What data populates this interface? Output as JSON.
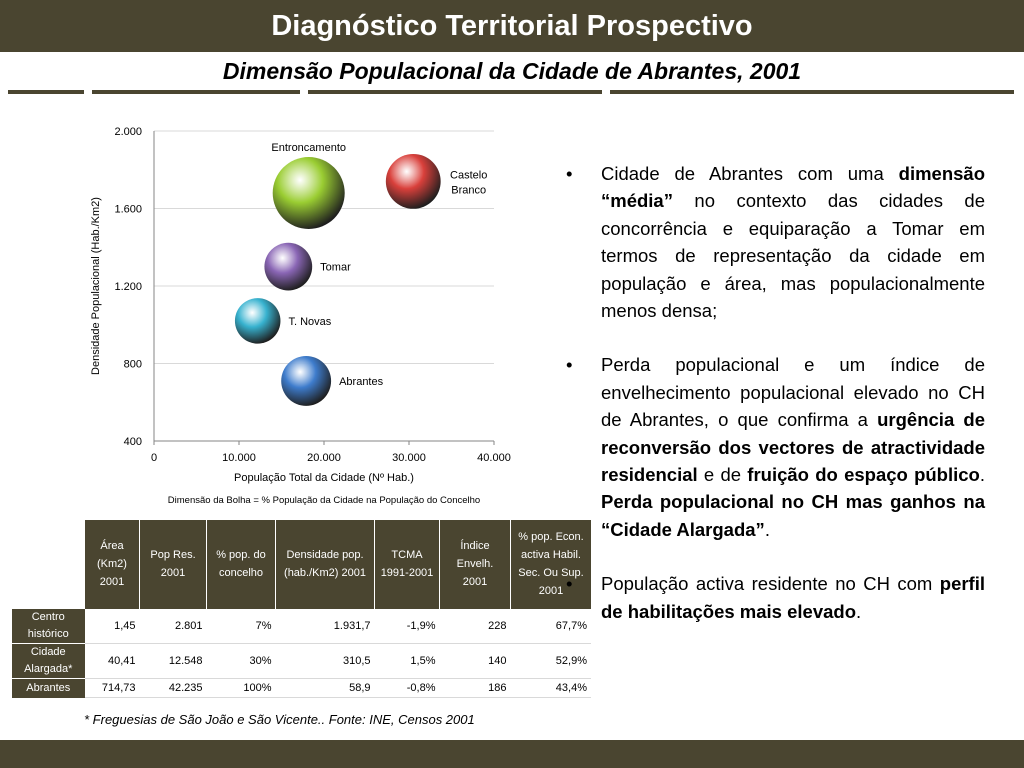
{
  "header": {
    "title": "Diagnóstico Territorial Prospectivo"
  },
  "subtitle": "Dimensão Populacional da Cidade de Abrantes, 2001",
  "chart_data": {
    "type": "bubble",
    "xlabel": "População Total da Cidade (Nº Hab.)",
    "ylabel": "Densidade Populacional (Hab./Km2)",
    "xlim": [
      0,
      40000
    ],
    "ylim": [
      400,
      2000
    ],
    "x_ticks": [
      0,
      10000,
      20000,
      30000,
      40000
    ],
    "x_tick_labels": [
      "0",
      "10.000",
      "20.000",
      "30.000",
      "40.000"
    ],
    "y_ticks": [
      400,
      800,
      1200,
      1600,
      2000
    ],
    "y_tick_labels": [
      "400",
      "800",
      "1.200",
      "1.600",
      "2.000"
    ],
    "grid": "horizontal",
    "note": "Dimensão da Bolha = % População da Cidade na População do Concelho",
    "points": [
      {
        "label": "Entroncamento",
        "x": 18200,
        "y": 1680,
        "size": 100,
        "color": "#9acd32"
      },
      {
        "label": "Castelo Branco",
        "x": 30500,
        "y": 1740,
        "size": 58,
        "color": "#d9403b"
      },
      {
        "label": "Tomar",
        "x": 15800,
        "y": 1300,
        "size": 44,
        "color": "#8a66b5"
      },
      {
        "label": "T. Novas",
        "x": 12200,
        "y": 1020,
        "size": 40,
        "color": "#37b2cf"
      },
      {
        "label": "Abrantes",
        "x": 17900,
        "y": 710,
        "size": 48,
        "color": "#3e7ccc"
      }
    ]
  },
  "table": {
    "headers": [
      "Área (Km2) 2001",
      "Pop Res. 2001",
      "% pop. do concelho",
      "Densidade pop. (hab./Km2) 2001",
      "TCMA 1991-2001",
      "Índice Envelh. 2001",
      "% pop. Econ. activa Habil. Sec. Ou Sup. 2001"
    ],
    "rows": [
      {
        "label": "Centro histórico",
        "values": [
          "1,45",
          "2.801",
          "7%",
          "1.931,7",
          "-1,9%",
          "228",
          "67,7%"
        ]
      },
      {
        "label": "Cidade Alargada*",
        "values": [
          "40,41",
          "12.548",
          "30%",
          "310,5",
          "1,5%",
          "140",
          "52,9%"
        ]
      },
      {
        "label": "Abrantes",
        "values": [
          "714,73",
          "42.235",
          "100%",
          "58,9",
          "-0,8%",
          "186",
          "43,4%"
        ]
      }
    ]
  },
  "footnote": "* Freguesias de São João e São Vicente.. Fonte: INE, Censos 2001",
  "bullets": [
    {
      "dot": "•",
      "parts": [
        {
          "text": "Cidade de Abrantes com uma ",
          "bold": false
        },
        {
          "text": "dimensão “média”",
          "bold": true
        },
        {
          "text": " no contexto das cidades de concorrência e equiparação a Tomar em termos de representação da cidade em população e área, mas populacionalmente menos densa;",
          "bold": false
        }
      ]
    },
    {
      "dot": "•",
      "parts": [
        {
          "text": "Perda populacional e um índice de envelhecimento populacional elevado no CH de Abrantes, o que confirma a ",
          "bold": false
        },
        {
          "text": "urgência de reconversão dos vectores de atractividade residencial",
          "bold": true
        },
        {
          "text": " e de ",
          "bold": false
        },
        {
          "text": "fruição do espaço público",
          "bold": true
        },
        {
          "text": ". ",
          "bold": false
        },
        {
          "text": "Perda populacional no CH mas ganhos na “Cidade Alargada”",
          "bold": true
        },
        {
          "text": ".",
          "bold": false
        }
      ]
    },
    {
      "dot": "•",
      "parts": [
        {
          "text": "População activa residente no CH com ",
          "bold": false
        },
        {
          "text": "perfil de habilitações mais elevado",
          "bold": true
        },
        {
          "text": ".",
          "bold": false
        }
      ]
    }
  ]
}
